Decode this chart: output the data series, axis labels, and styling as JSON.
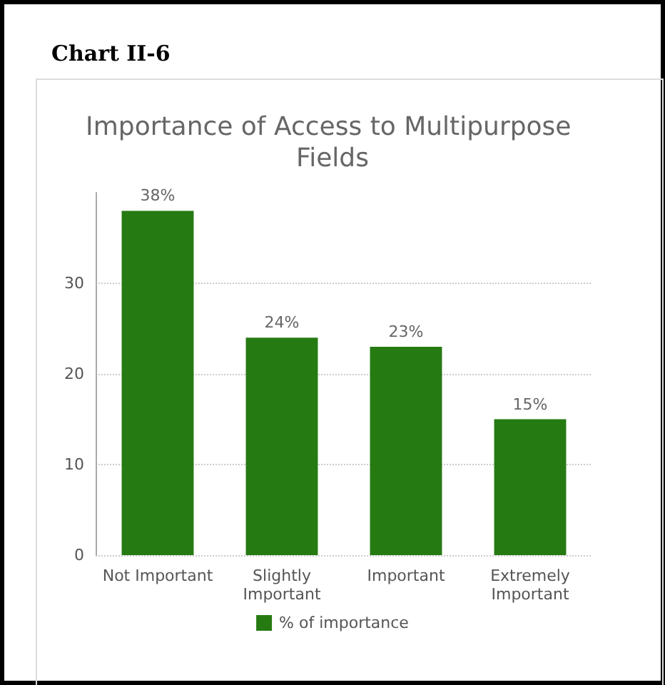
{
  "chart_data": {
    "type": "bar",
    "title": "Chart II-6",
    "subtitle": "Importance of Access to Multipurpose Fields",
    "categories": [
      "Not Important",
      "Slightly\nImportant",
      "Important",
      "Extremely\nImportant"
    ],
    "series": [
      {
        "name": "% of importance",
        "color": "#267a12",
        "values": [
          38,
          24,
          23,
          15
        ],
        "value_labels": [
          "38%",
          "24%",
          "23%",
          "15%"
        ]
      }
    ],
    "ylim": [
      0,
      40
    ],
    "yticks": [
      0,
      10,
      20,
      30
    ],
    "grid": "y",
    "legend": "bottom"
  }
}
